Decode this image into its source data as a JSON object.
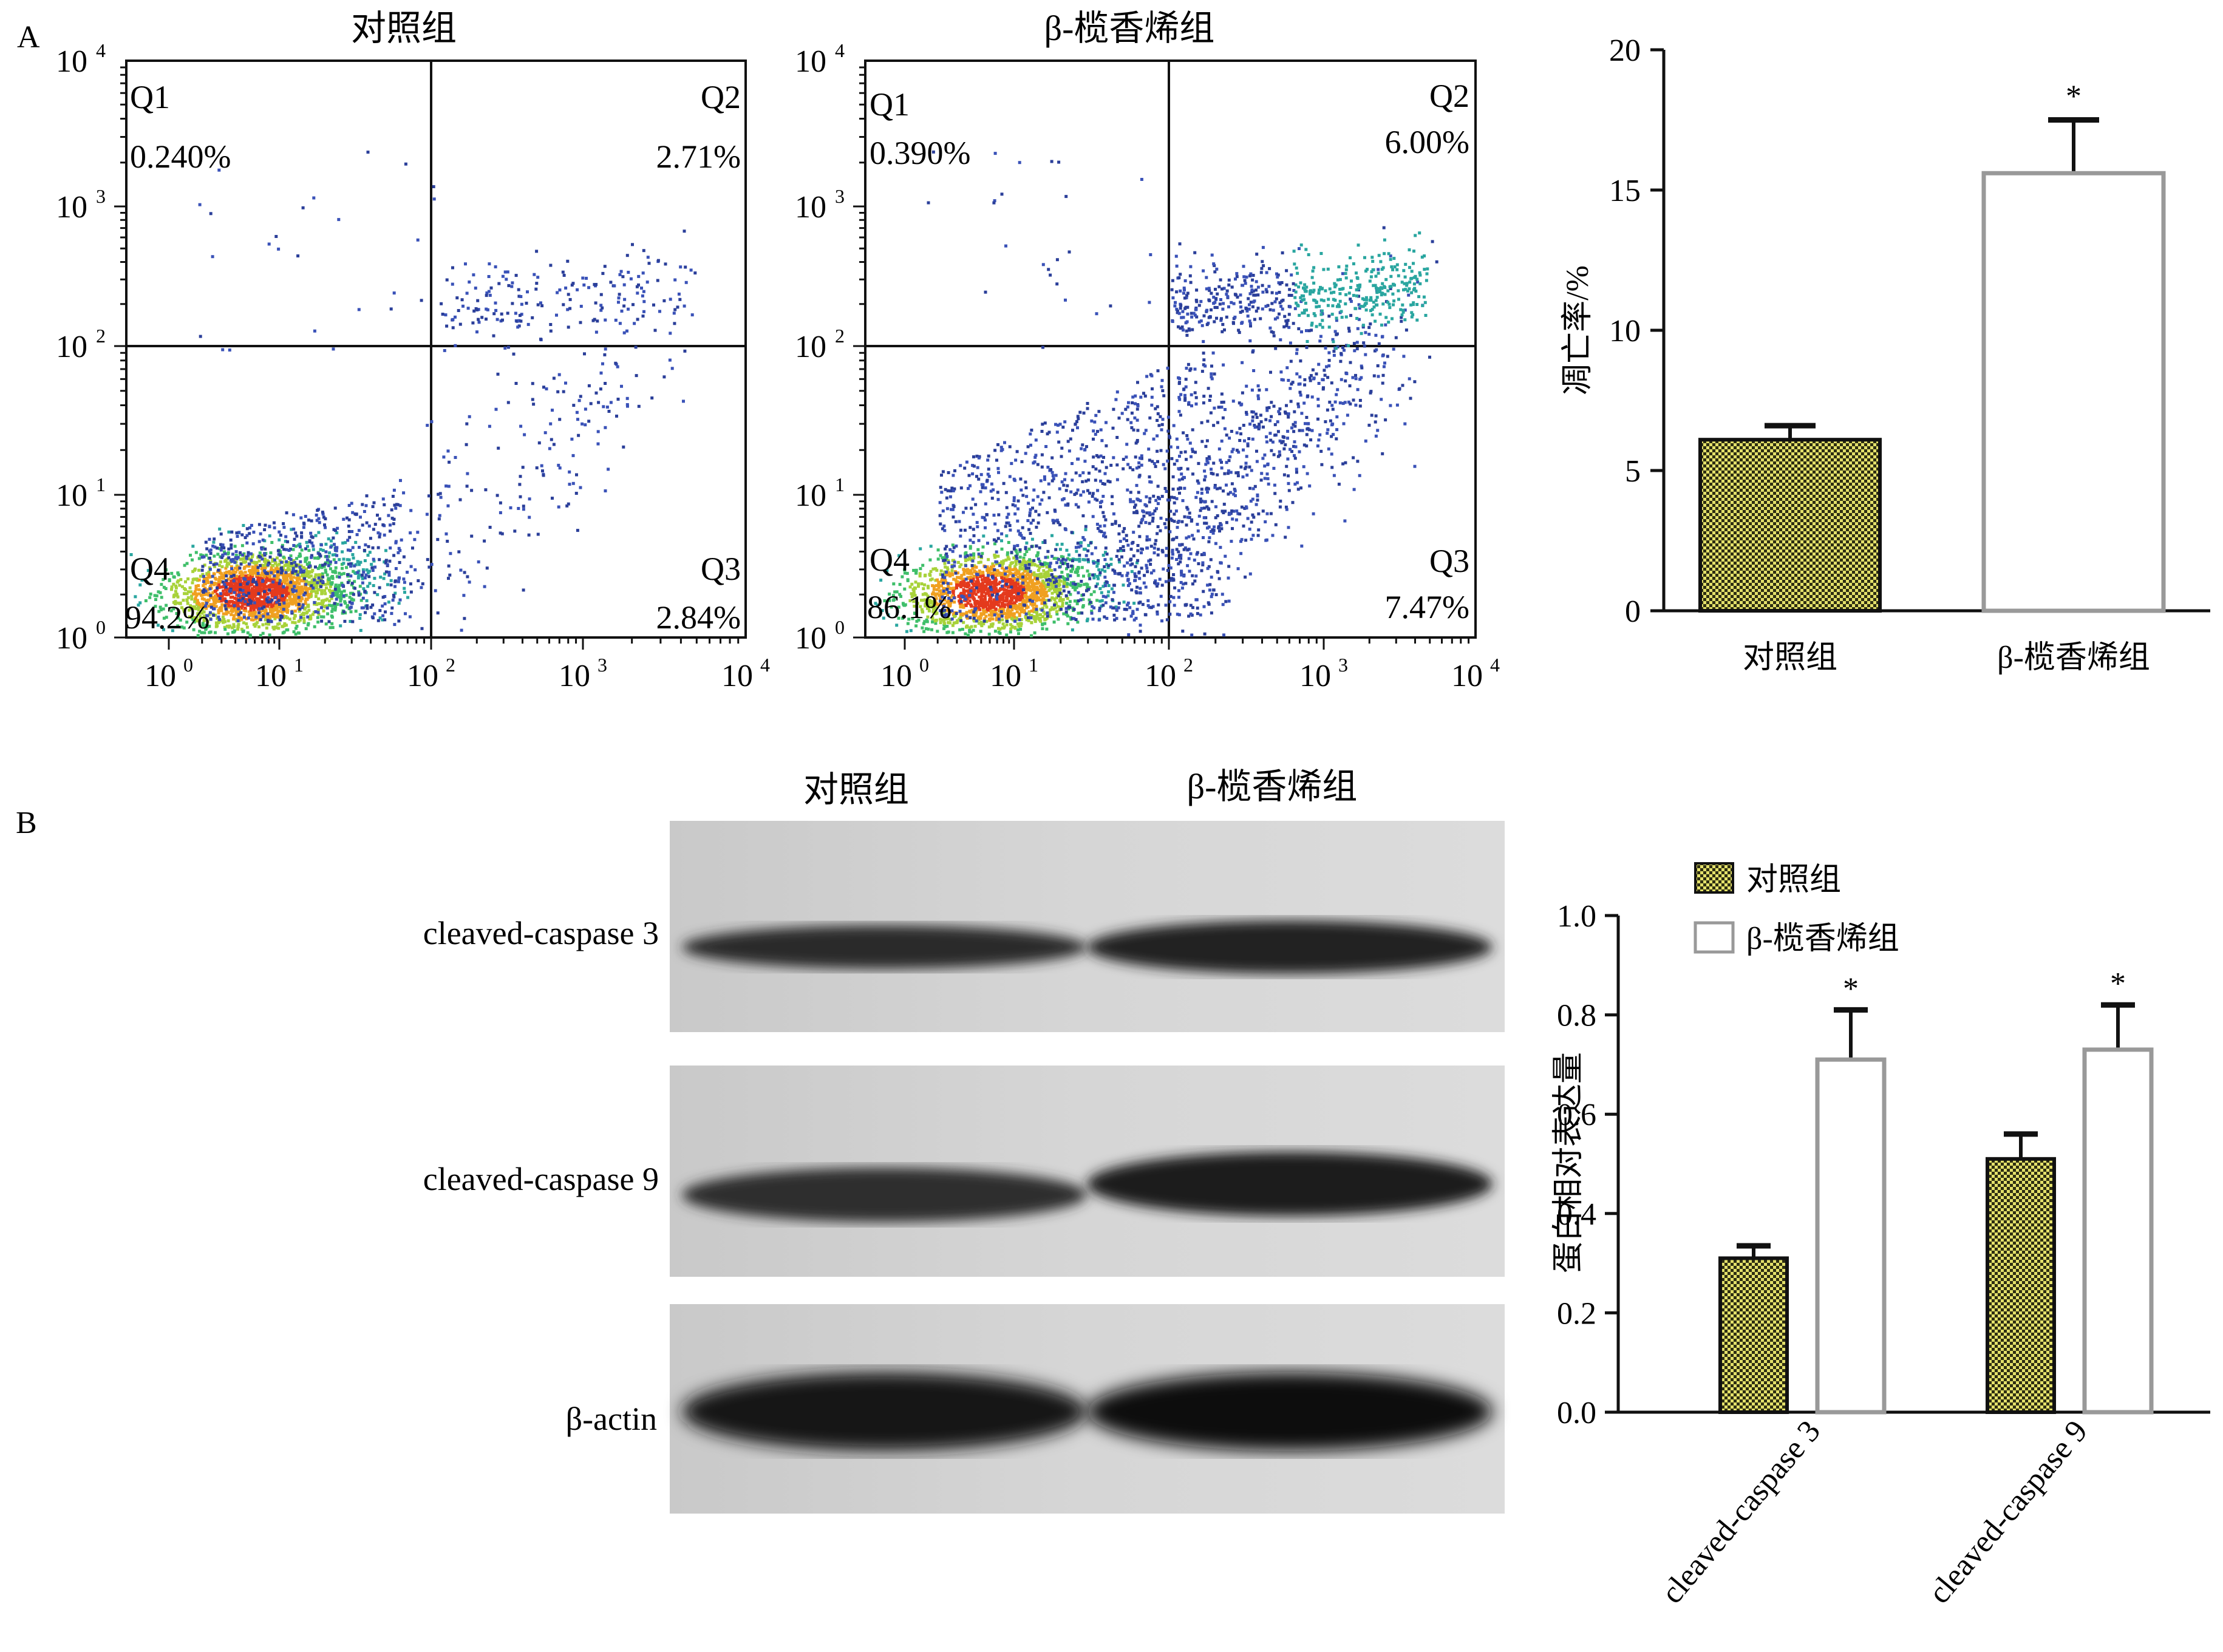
{
  "panelA": {
    "label": "A",
    "flow": [
      {
        "title": "对照组",
        "quadrants": {
          "q1": {
            "name": "Q1",
            "value": "0.240%"
          },
          "q2": {
            "name": "Q2",
            "value": "2.71%"
          },
          "q3": {
            "name": "Q3",
            "value": "2.84%"
          },
          "q4": {
            "name": "Q4",
            "value": "94.2%"
          }
        }
      },
      {
        "title": "β-榄香烯组",
        "quadrants": {
          "q1": {
            "name": "Q1",
            "value": "0.390%"
          },
          "q2": {
            "name": "Q2",
            "value": "6.00%"
          },
          "q3": {
            "name": "Q3",
            "value": "7.47%"
          },
          "q4": {
            "name": "Q4",
            "value": "86.1%"
          }
        }
      }
    ],
    "flow_ticks": [
      "10",
      "10",
      "10",
      "10",
      "10"
    ],
    "flow_tick_exponents": [
      "0",
      "1",
      "2",
      "3",
      "4"
    ]
  },
  "panelB": {
    "label": "B",
    "columns": [
      "对照组",
      "β-榄香烯组"
    ],
    "blots": [
      "cleaved-caspase 3",
      "cleaved-caspase 9",
      "β-actin"
    ]
  },
  "colors": {
    "control_fill": "#e3e06a",
    "control_pattern": "#2a2a10",
    "treated_fill": "#ffffff",
    "treated_stroke": "#9a9a9a",
    "axis": "#111111"
  },
  "chart_data": [
    {
      "type": "bar",
      "categories": [
        "对照组",
        "β-榄香烯组"
      ],
      "values": [
        6.1,
        15.6
      ],
      "errors": [
        0.5,
        1.9
      ],
      "significance": [
        "",
        "*"
      ],
      "ylabel": "凋亡率/%",
      "ylim": [
        0,
        20
      ],
      "yticks": [
        "0",
        "5",
        "10",
        "15",
        "20"
      ],
      "grid": false
    },
    {
      "type": "bar",
      "categories": [
        "cleaved-caspase 3",
        "cleaved-caspase 9"
      ],
      "series": [
        {
          "name": "对照组",
          "values": [
            0.31,
            0.51
          ],
          "errors": [
            0.025,
            0.05
          ]
        },
        {
          "name": "β-榄香烯组",
          "values": [
            0.71,
            0.73
          ],
          "errors": [
            0.1,
            0.09
          ]
        }
      ],
      "significance": [
        "*",
        "*"
      ],
      "ylabel": "蛋白相对表达量",
      "ylim": [
        0,
        1.0
      ],
      "yticks": [
        "0.0",
        "0.2",
        "0.4",
        "0.6",
        "0.8",
        "1.0"
      ],
      "legend": "top-left",
      "grid": false
    }
  ]
}
